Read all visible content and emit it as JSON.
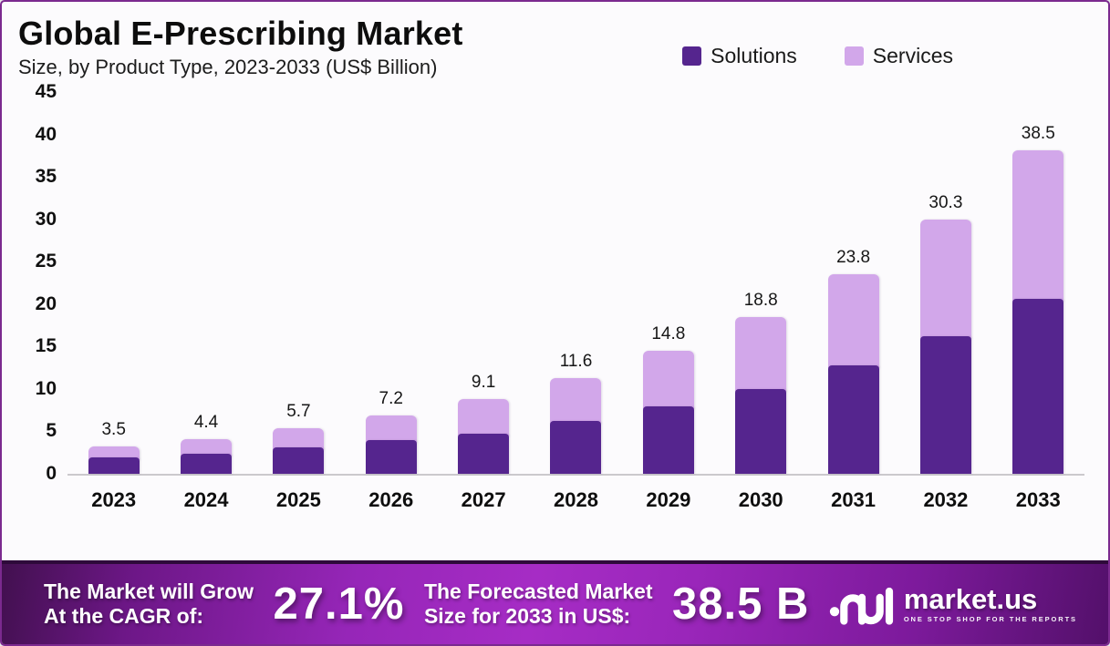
{
  "header": {
    "title": "Global E-Prescribing Market",
    "subtitle": "Size, by Product Type, 2023-2033 (US$ Billion)"
  },
  "legend": [
    {
      "label": "Solutions",
      "color": "#55258e"
    },
    {
      "label": "Services",
      "color": "#d2a7ea"
    }
  ],
  "chart_data": {
    "type": "bar",
    "stacked": true,
    "title": "Global E-Prescribing Market Size, by Product Type, 2023-2033 (US$ Billion)",
    "categories": [
      "2023",
      "2024",
      "2025",
      "2026",
      "2027",
      "2028",
      "2029",
      "2030",
      "2031",
      "2032",
      "2033"
    ],
    "series": [
      {
        "name": "Solutions",
        "color": "#55258e",
        "values": [
          1.9,
          2.4,
          3.1,
          4.0,
          4.7,
          6.2,
          7.9,
          10.0,
          12.8,
          16.2,
          20.6
        ]
      },
      {
        "name": "Services",
        "color": "#d2a7ea",
        "values": [
          1.6,
          2.0,
          2.6,
          3.2,
          4.4,
          5.4,
          6.9,
          8.8,
          11.0,
          14.1,
          17.9
        ]
      }
    ],
    "totals_labels": [
      "3.5",
      "4.4",
      "5.7",
      "7.2",
      "9.1",
      "11.6",
      "14.8",
      "18.8",
      "23.8",
      "30.3",
      "38.5"
    ],
    "y_ticks": [
      45,
      40,
      35,
      30,
      25,
      20,
      15,
      10,
      5,
      0
    ],
    "ylim": [
      0,
      45
    ],
    "xlabel": "",
    "ylabel": "",
    "grid": false,
    "legend_position": "top-right"
  },
  "banner": {
    "cagr_label_line1": "The Market will Grow",
    "cagr_label_line2": "At the CAGR of:",
    "cagr_value": "27.1%",
    "forecast_label_line1": "The Forecasted Market",
    "forecast_label_line2": "Size for 2033 in US$:",
    "forecast_value": "38.5 B",
    "brand": {
      "name": "market.us",
      "tagline": "ONE STOP SHOP FOR THE REPORTS"
    }
  },
  "colors": {
    "frame_border": "#7b2a8f",
    "solutions": "#55258e",
    "services": "#d2a7ea",
    "axis_line": "#cbc9cd",
    "banner_mid": "#a62cc5",
    "banner_edge": "#42104f"
  }
}
